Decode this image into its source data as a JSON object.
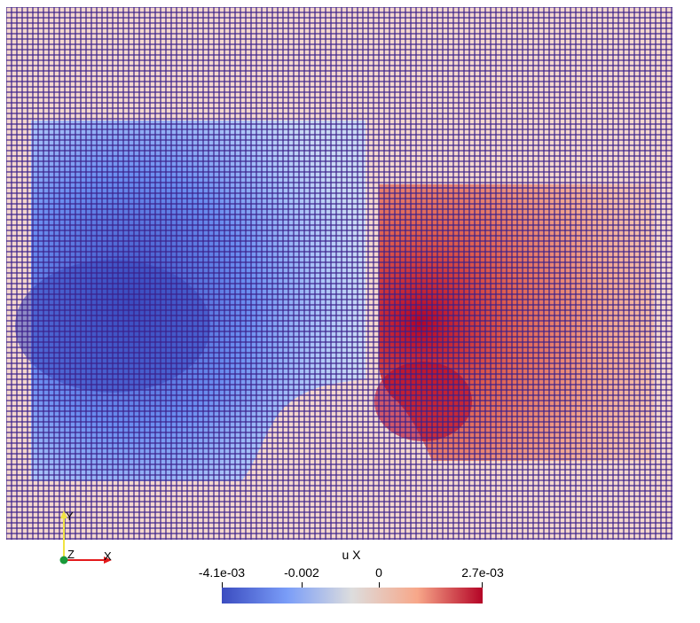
{
  "scene": {
    "field_name": "u X",
    "mesh": "structured quad grid with cell edges shown",
    "colormap": [
      "#3b4cc0",
      "#7a9df8",
      "#dddddd",
      "#f7a789",
      "#b40426"
    ],
    "colors": {
      "background": "#ffffff",
      "grid_line": "#3a1f8a",
      "cell_face": "#f3d6cc"
    }
  },
  "colorbar": {
    "title": "u X",
    "min_label": "-4.1e-03",
    "mid_label_1": "-0.002",
    "mid_label_2": "0",
    "max_label": "2.7e-03",
    "range": [
      -0.0041,
      0.0027
    ]
  },
  "axes": {
    "y_label": "Y",
    "z_label": "Z",
    "x_label": "X",
    "colors": {
      "x": "#e31a1c",
      "y": "#f0e442",
      "z": "#1a9a3a"
    }
  }
}
